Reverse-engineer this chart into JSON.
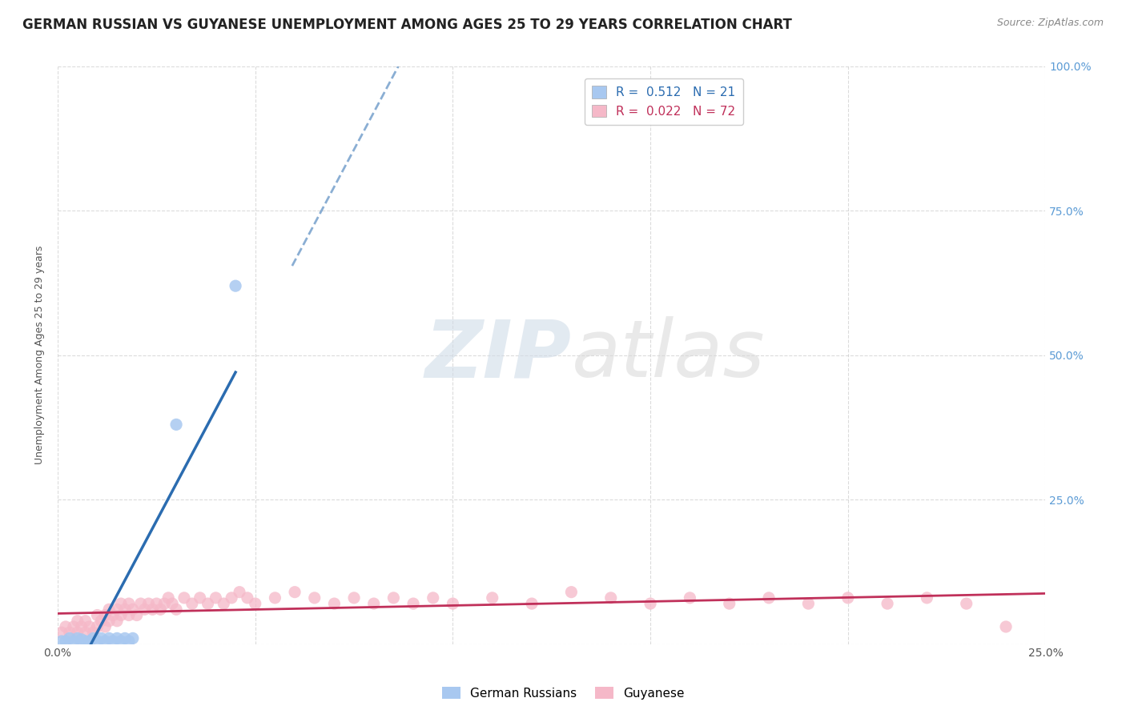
{
  "title": "GERMAN RUSSIAN VS GUYANESE UNEMPLOYMENT AMONG AGES 25 TO 29 YEARS CORRELATION CHART",
  "source": "Source: ZipAtlas.com",
  "ylabel": "Unemployment Among Ages 25 to 29 years",
  "xlim": [
    0.0,
    0.25
  ],
  "ylim": [
    0.0,
    1.0
  ],
  "xticks": [
    0.0,
    0.05,
    0.1,
    0.15,
    0.2,
    0.25
  ],
  "xtick_labels": [
    "0.0%",
    "",
    "",
    "",
    "",
    "25.0%"
  ],
  "yticks": [
    0.0,
    0.25,
    0.5,
    0.75,
    1.0
  ],
  "ytick_labels_right": [
    "",
    "25.0%",
    "50.0%",
    "75.0%",
    "100.0%"
  ],
  "legend_entries": [
    {
      "label": "R =  0.512   N = 21"
    },
    {
      "label": "R =  0.022   N = 72"
    }
  ],
  "gr_scatter_x": [
    0.001,
    0.002,
    0.003,
    0.004,
    0.005,
    0.006,
    0.007,
    0.008,
    0.009,
    0.01,
    0.011,
    0.012,
    0.013,
    0.014,
    0.015,
    0.016,
    0.017,
    0.018,
    0.019,
    0.03,
    0.045
  ],
  "gr_scatter_y": [
    0.005,
    0.005,
    0.01,
    0.005,
    0.01,
    0.008,
    0.005,
    0.005,
    0.01,
    0.005,
    0.01,
    0.005,
    0.01,
    0.005,
    0.01,
    0.005,
    0.01,
    0.005,
    0.01,
    0.38,
    0.62
  ],
  "gu_scatter_x": [
    0.001,
    0.002,
    0.003,
    0.004,
    0.005,
    0.005,
    0.006,
    0.007,
    0.007,
    0.008,
    0.009,
    0.01,
    0.01,
    0.011,
    0.012,
    0.012,
    0.013,
    0.013,
    0.014,
    0.015,
    0.015,
    0.016,
    0.016,
    0.017,
    0.018,
    0.018,
    0.019,
    0.02,
    0.021,
    0.022,
    0.023,
    0.024,
    0.025,
    0.026,
    0.027,
    0.028,
    0.029,
    0.03,
    0.032,
    0.034,
    0.036,
    0.038,
    0.04,
    0.042,
    0.044,
    0.046,
    0.048,
    0.05,
    0.055,
    0.06,
    0.065,
    0.07,
    0.075,
    0.08,
    0.085,
    0.09,
    0.095,
    0.1,
    0.11,
    0.12,
    0.13,
    0.14,
    0.15,
    0.16,
    0.17,
    0.18,
    0.19,
    0.2,
    0.21,
    0.22,
    0.23,
    0.24
  ],
  "gu_scatter_y": [
    0.02,
    0.03,
    0.02,
    0.03,
    0.02,
    0.04,
    0.03,
    0.02,
    0.04,
    0.03,
    0.02,
    0.03,
    0.05,
    0.04,
    0.03,
    0.05,
    0.04,
    0.06,
    0.05,
    0.04,
    0.06,
    0.05,
    0.07,
    0.06,
    0.05,
    0.07,
    0.06,
    0.05,
    0.07,
    0.06,
    0.07,
    0.06,
    0.07,
    0.06,
    0.07,
    0.08,
    0.07,
    0.06,
    0.08,
    0.07,
    0.08,
    0.07,
    0.08,
    0.07,
    0.08,
    0.09,
    0.08,
    0.07,
    0.08,
    0.09,
    0.08,
    0.07,
    0.08,
    0.07,
    0.08,
    0.07,
    0.08,
    0.07,
    0.08,
    0.07,
    0.09,
    0.08,
    0.07,
    0.08,
    0.07,
    0.08,
    0.07,
    0.08,
    0.07,
    0.08,
    0.07,
    0.03
  ],
  "gr_line_color": "#2b6cb0",
  "gu_line_color": "#c0305a",
  "gr_scatter_color": "#a8c8f0",
  "gu_scatter_color": "#f5b8c8",
  "background_color": "#ffffff",
  "grid_color": "#cccccc",
  "watermark_zip": "ZIP",
  "watermark_atlas": "atlas",
  "title_fontsize": 12,
  "axis_fontsize": 9,
  "tick_fontsize": 10,
  "legend_fontsize": 11
}
